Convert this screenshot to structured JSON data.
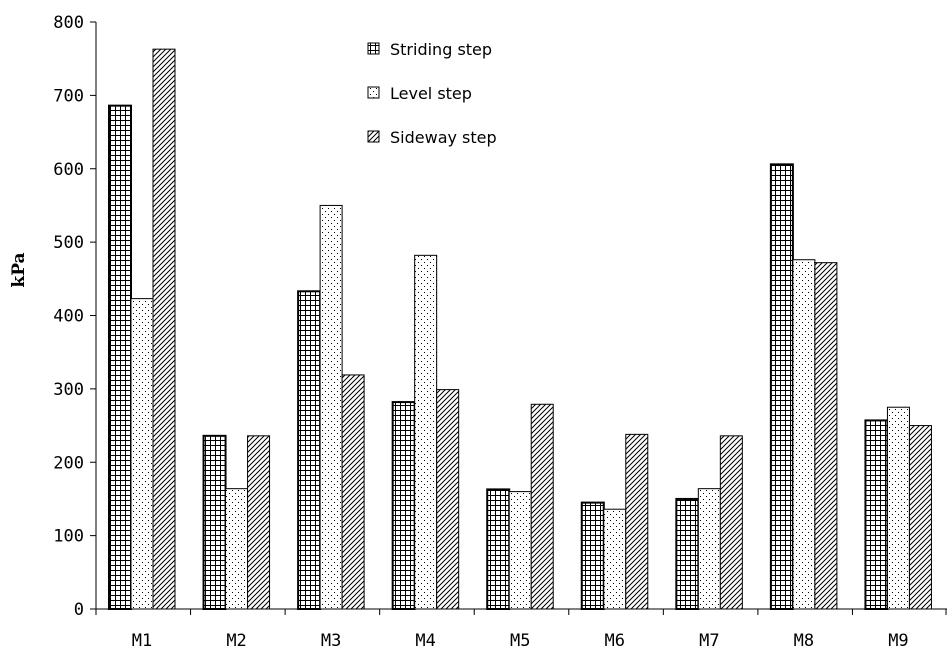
{
  "chart_data": {
    "type": "bar",
    "title": "",
    "xlabel": "",
    "ylabel": "kPa",
    "ylim": [
      0,
      800
    ],
    "yticks": [
      "0",
      "100",
      "200",
      "300",
      "400",
      "500",
      "600",
      "700",
      "800"
    ],
    "categories": [
      "M1",
      "M2",
      "M3",
      "M4",
      "M5",
      "M6",
      "M7",
      "M8",
      "M9"
    ],
    "series": [
      {
        "name": "Striding step",
        "pattern": "grid",
        "values": [
          686,
          236,
          433,
          282,
          163,
          145,
          150,
          606,
          257
        ]
      },
      {
        "name": "Level step",
        "pattern": "dots",
        "values": [
          423,
          164,
          550,
          482,
          160,
          136,
          164,
          476,
          275
        ]
      },
      {
        "name": "Sideway step",
        "pattern": "hatch",
        "values": [
          763,
          236,
          319,
          299,
          279,
          238,
          236,
          472,
          250
        ]
      }
    ],
    "legend_position": "top-center",
    "grid": false,
    "colors": {
      "ink": "#000000",
      "background": "#ffffff"
    }
  }
}
